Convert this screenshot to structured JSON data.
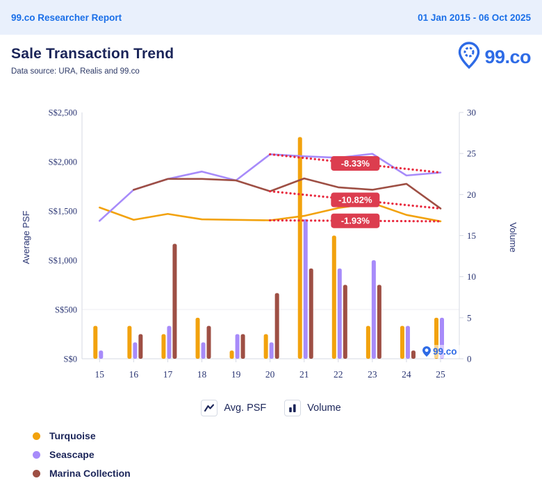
{
  "header": {
    "left": "99.co Researcher Report",
    "right": "01 Jan 2015 - 06 Oct 2025"
  },
  "title": {
    "text": "Sale Transaction Trend",
    "subtitle": "Data source: URA, Realis and 99.co",
    "brand": "99.co"
  },
  "legend": {
    "avg_psf": "Avg. PSF",
    "volume": "Volume"
  },
  "watermark": "99.co",
  "colors": {
    "accent_blue": "#1A6FE8",
    "navy": "#1B2559",
    "axis_text": "#2B3674",
    "axis_line": "#D6DAE3",
    "gridline": "#ECEDF3",
    "trend_red": "#E8293E",
    "badge_red": "#DC3D4F",
    "logo_blue": "#2E6BE6"
  },
  "chart_data": {
    "type": "combo-line-bar",
    "title": "Sale Transaction Trend",
    "categories": [
      "15",
      "16",
      "17",
      "18",
      "19",
      "20",
      "21",
      "22",
      "23",
      "24",
      "25"
    ],
    "left_axis": {
      "label": "Average PSF",
      "min": 0,
      "max": 2500,
      "step": 500,
      "tick_labels": [
        "S$0",
        "S$500",
        "S$1,000",
        "S$1,500",
        "S$2,000",
        "S$2,500"
      ]
    },
    "right_axis": {
      "label": "Volume",
      "min": 0,
      "max": 30,
      "step": 5,
      "tick_labels": [
        "0",
        "5",
        "10",
        "15",
        "20",
        "25",
        "30"
      ]
    },
    "grid": "single horizontal gridline at S$500",
    "legend_position": "bottom",
    "trend_start_category": "20",
    "trend_start_index": 5,
    "series": [
      {
        "name": "Turquoise",
        "color": "#F2A20D",
        "avg_psf": [
          1535,
          1410,
          1470,
          1415,
          1410,
          1405,
          1450,
          1530,
          1580,
          1460,
          1395
        ],
        "volume": [
          4,
          4,
          3,
          5,
          1,
          3,
          27,
          15,
          4,
          4,
          5
        ],
        "trend_label": "-1.93%"
      },
      {
        "name": "Seascape",
        "color": "#A78BFA",
        "avg_psf": [
          1400,
          1715,
          1825,
          1900,
          1810,
          2075,
          2055,
          2040,
          2080,
          1860,
          1890
        ],
        "volume": [
          1,
          2,
          4,
          2,
          3,
          2,
          17,
          11,
          12,
          4,
          5
        ],
        "trend_label": "-8.33%"
      },
      {
        "name": "Marina Collection",
        "color": "#9E4F44",
        "avg_psf": [
          null,
          1715,
          1825,
          1825,
          1810,
          1700,
          1830,
          1740,
          1715,
          1775,
          1525
        ],
        "volume": [
          0,
          3,
          14,
          4,
          3,
          8,
          11,
          9,
          9,
          1,
          0
        ],
        "trend_label": "-10.82%"
      }
    ]
  }
}
